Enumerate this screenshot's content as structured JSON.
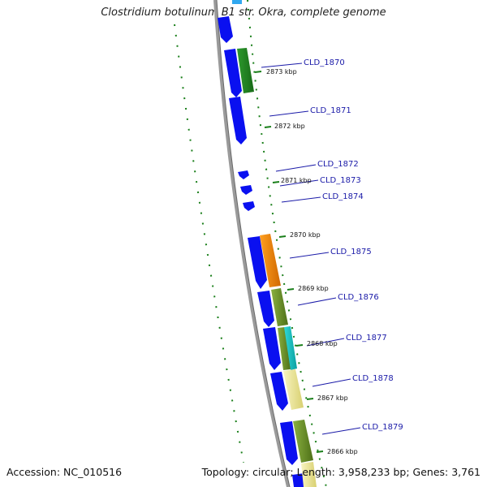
{
  "title": "Clostridium botulinum B1 str. Okra, complete genome",
  "footer": {
    "accession": "Accession: NC_010516",
    "topology": "Topology: circular; Length: 3,958,233 bp; Genes: 3,761"
  },
  "genes": [
    {
      "label": "CLD_1870"
    },
    {
      "label": "CLD_1871"
    },
    {
      "label": "CLD_1872"
    },
    {
      "label": "CLD_1873"
    },
    {
      "label": "CLD_1874"
    },
    {
      "label": "CLD_1875"
    },
    {
      "label": "CLD_1876"
    },
    {
      "label": "CLD_1877"
    },
    {
      "label": "CLD_1878"
    },
    {
      "label": "CLD_1879"
    }
  ],
  "kbp_ticks": [
    {
      "label": "2873 kbp"
    },
    {
      "label": "2872 kbp"
    },
    {
      "label": "2871 kbp"
    },
    {
      "label": "2870 kbp"
    },
    {
      "label": "2869 kbp"
    },
    {
      "label": "2868 kbp"
    },
    {
      "label": "2867 kbp"
    },
    {
      "label": "2866 kbp"
    }
  ],
  "colors": {
    "cds": "#0a10f0",
    "backbone": "#8c8c8c",
    "tick": "#1a7f1a",
    "gene_label": "#1a1aa8"
  }
}
